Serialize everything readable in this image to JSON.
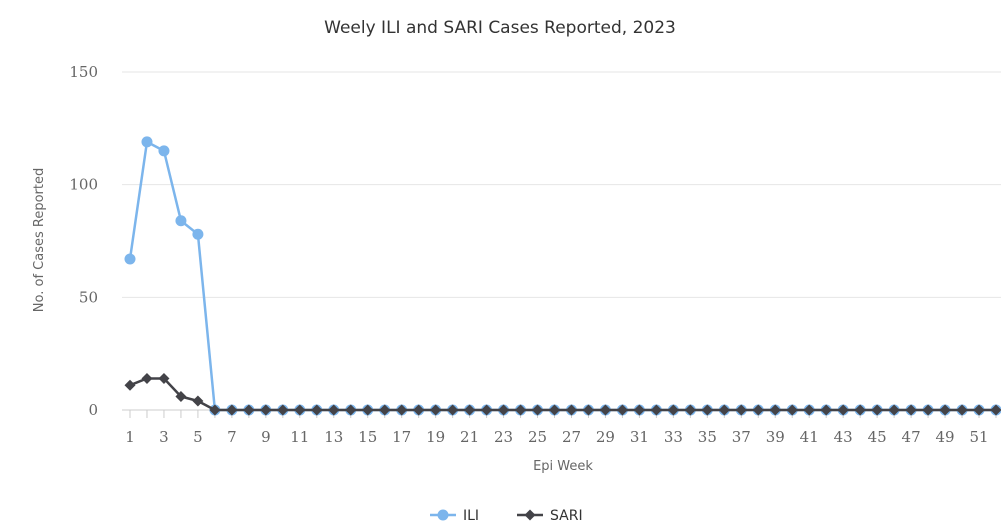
{
  "chart_data": {
    "type": "line",
    "title": "Weely ILI and SARI Cases Reported, 2023",
    "xlabel": "Epi Week",
    "ylabel": "No. of Cases Reported",
    "x": [
      1,
      2,
      3,
      4,
      5,
      6,
      7,
      8,
      9,
      10,
      11,
      12,
      13,
      14,
      15,
      16,
      17,
      18,
      19,
      20,
      21,
      22,
      23,
      24,
      25,
      26,
      27,
      28,
      29,
      30,
      31,
      32,
      33,
      34,
      35,
      36,
      37,
      38,
      39,
      40,
      41,
      42,
      43,
      44,
      45,
      46,
      47,
      48,
      49,
      50,
      51,
      52
    ],
    "x_tick_labels": [
      "1",
      "3",
      "5",
      "7",
      "9",
      "11",
      "13",
      "15",
      "17",
      "19",
      "21",
      "23",
      "25",
      "27",
      "29",
      "31",
      "33",
      "35",
      "37",
      "39",
      "41",
      "43",
      "45",
      "47",
      "49",
      "51"
    ],
    "y_ticks": [
      0,
      50,
      100,
      150
    ],
    "y_tick_labels": [
      "0",
      "50",
      "100",
      "150"
    ],
    "ylim": [
      0,
      150
    ],
    "grid": true,
    "legend_position": "bottom-center",
    "series": [
      {
        "name": "ILI",
        "color": "#7cb5ec",
        "marker": "circle",
        "values": [
          67,
          119,
          115,
          84,
          78,
          0,
          0,
          0,
          0,
          0,
          0,
          0,
          0,
          0,
          0,
          0,
          0,
          0,
          0,
          0,
          0,
          0,
          0,
          0,
          0,
          0,
          0,
          0,
          0,
          0,
          0,
          0,
          0,
          0,
          0,
          0,
          0,
          0,
          0,
          0,
          0,
          0,
          0,
          0,
          0,
          0,
          0,
          0,
          0,
          0,
          0,
          0
        ]
      },
      {
        "name": "SARI",
        "color": "#434348",
        "marker": "diamond",
        "values": [
          11,
          14,
          14,
          6,
          4,
          0,
          0,
          0,
          0,
          0,
          0,
          0,
          0,
          0,
          0,
          0,
          0,
          0,
          0,
          0,
          0,
          0,
          0,
          0,
          0,
          0,
          0,
          0,
          0,
          0,
          0,
          0,
          0,
          0,
          0,
          0,
          0,
          0,
          0,
          0,
          0,
          0,
          0,
          0,
          0,
          0,
          0,
          0,
          0,
          0,
          0,
          0
        ]
      }
    ]
  }
}
